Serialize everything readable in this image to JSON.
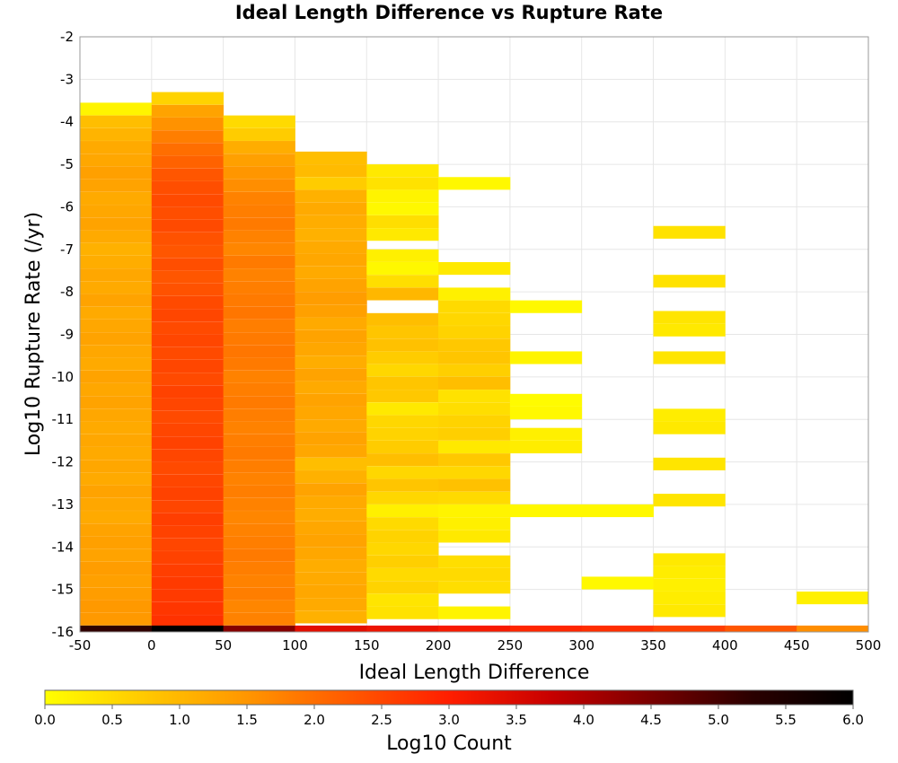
{
  "chart_data": {
    "type": "heatmap",
    "title": "Ideal Length Difference vs Rupture Rate",
    "xlabel": "Ideal Length Difference",
    "ylabel": "Log10 Rupture Rate (/yr)",
    "xlim": [
      -50,
      500
    ],
    "ylim": [
      -16,
      -2
    ],
    "x_ticks": [
      "-50",
      "0",
      "50",
      "100",
      "150",
      "200",
      "250",
      "300",
      "350",
      "400",
      "450",
      "500"
    ],
    "y_ticks": [
      "-2",
      "-3",
      "-4",
      "-5",
      "-6",
      "-7",
      "-8",
      "-9",
      "-10",
      "-11",
      "-12",
      "-13",
      "-14",
      "-15",
      "-16"
    ],
    "x_bin_width": 50,
    "y_bin_height": 0.29,
    "grid": true,
    "colorbar": {
      "label": "Log10 Count",
      "min": 0.0,
      "max": 6.0,
      "ticks": [
        "0.0",
        "0.5",
        "1.0",
        "1.5",
        "2.0",
        "2.5",
        "3.0",
        "3.5",
        "4.0",
        "4.5",
        "5.0",
        "5.5",
        "6.0"
      ],
      "colormap": [
        "#ffff00",
        "#ffc800",
        "#ff9600",
        "#ff5a00",
        "#ff1e00",
        "#c80000",
        "#7a0000",
        "#2a0000",
        "#000000"
      ]
    },
    "columns": [
      {
        "x_start": -50,
        "y_top": -3.55,
        "cells": [
          [
            -3.55,
            0.15
          ],
          [
            -3.85,
            0.9
          ],
          [
            -4.15,
            1.05
          ],
          [
            -4.45,
            1.2
          ],
          [
            -4.75,
            1.25
          ],
          [
            -5.05,
            1.35
          ],
          [
            -5.35,
            1.3
          ],
          [
            -5.65,
            1.2
          ],
          [
            -5.95,
            1.25
          ],
          [
            -6.25,
            1.3
          ],
          [
            -6.55,
            1.2
          ],
          [
            -6.85,
            1.1
          ],
          [
            -7.15,
            1.15
          ],
          [
            -7.45,
            1.25
          ],
          [
            -7.75,
            1.2
          ],
          [
            -8.05,
            1.3
          ],
          [
            -8.35,
            1.2
          ],
          [
            -8.65,
            1.25
          ],
          [
            -8.95,
            1.3
          ],
          [
            -9.25,
            1.25
          ],
          [
            -9.55,
            1.2
          ],
          [
            -9.85,
            1.3
          ],
          [
            -10.15,
            1.25
          ],
          [
            -10.45,
            1.3
          ],
          [
            -10.75,
            1.25
          ],
          [
            -11.05,
            1.2
          ],
          [
            -11.35,
            1.25
          ],
          [
            -11.65,
            1.2
          ],
          [
            -11.95,
            1.25
          ],
          [
            -12.25,
            1.2
          ],
          [
            -12.55,
            1.3
          ],
          [
            -12.85,
            1.25
          ],
          [
            -13.15,
            1.2
          ],
          [
            -13.45,
            1.3
          ],
          [
            -13.75,
            1.35
          ],
          [
            -14.05,
            1.3
          ],
          [
            -14.35,
            1.4
          ],
          [
            -14.65,
            1.35
          ],
          [
            -14.95,
            1.4
          ],
          [
            -15.25,
            1.45
          ],
          [
            -15.55,
            1.45
          ],
          [
            -15.85,
            5.2
          ]
        ]
      },
      {
        "x_start": 0,
        "y_top": -3.3,
        "cells": [
          [
            -3.3,
            0.6
          ],
          [
            -3.6,
            1.3
          ],
          [
            -3.9,
            1.55
          ],
          [
            -4.2,
            1.8
          ],
          [
            -4.5,
            2.0
          ],
          [
            -4.8,
            2.15
          ],
          [
            -5.1,
            2.3
          ],
          [
            -5.4,
            2.4
          ],
          [
            -5.7,
            2.45
          ],
          [
            -6.0,
            2.4
          ],
          [
            -6.3,
            2.45
          ],
          [
            -6.6,
            2.35
          ],
          [
            -6.9,
            2.3
          ],
          [
            -7.2,
            2.4
          ],
          [
            -7.5,
            2.3
          ],
          [
            -7.8,
            2.35
          ],
          [
            -8.1,
            2.45
          ],
          [
            -8.4,
            2.5
          ],
          [
            -8.7,
            2.45
          ],
          [
            -9.0,
            2.5
          ],
          [
            -9.3,
            2.45
          ],
          [
            -9.6,
            2.5
          ],
          [
            -9.9,
            2.45
          ],
          [
            -10.2,
            2.55
          ],
          [
            -10.5,
            2.5
          ],
          [
            -10.8,
            2.45
          ],
          [
            -11.1,
            2.5
          ],
          [
            -11.4,
            2.55
          ],
          [
            -11.7,
            2.5
          ],
          [
            -12.0,
            2.45
          ],
          [
            -12.3,
            2.5
          ],
          [
            -12.6,
            2.55
          ],
          [
            -12.9,
            2.5
          ],
          [
            -13.2,
            2.6
          ],
          [
            -13.5,
            2.55
          ],
          [
            -13.8,
            2.5
          ],
          [
            -14.1,
            2.55
          ],
          [
            -14.4,
            2.6
          ],
          [
            -14.7,
            2.65
          ],
          [
            -15.0,
            2.65
          ],
          [
            -15.3,
            2.7
          ],
          [
            -15.6,
            2.75
          ],
          [
            -15.85,
            6.0
          ]
        ]
      },
      {
        "x_start": 50,
        "y_top": -3.85,
        "cells": [
          [
            -3.85,
            0.5
          ],
          [
            -4.15,
            0.7
          ],
          [
            -4.45,
            1.15
          ],
          [
            -4.75,
            1.35
          ],
          [
            -5.05,
            1.5
          ],
          [
            -5.35,
            1.6
          ],
          [
            -5.65,
            1.75
          ],
          [
            -5.95,
            1.8
          ],
          [
            -6.25,
            1.85
          ],
          [
            -6.55,
            1.75
          ],
          [
            -6.85,
            1.7
          ],
          [
            -7.15,
            1.85
          ],
          [
            -7.45,
            1.75
          ],
          [
            -7.75,
            1.8
          ],
          [
            -8.05,
            1.85
          ],
          [
            -8.35,
            1.9
          ],
          [
            -8.65,
            1.8
          ],
          [
            -8.95,
            1.85
          ],
          [
            -9.25,
            1.9
          ],
          [
            -9.55,
            1.85
          ],
          [
            -9.85,
            1.75
          ],
          [
            -10.15,
            1.8
          ],
          [
            -10.45,
            1.85
          ],
          [
            -10.75,
            1.8
          ],
          [
            -11.05,
            1.75
          ],
          [
            -11.35,
            1.8
          ],
          [
            -11.65,
            1.85
          ],
          [
            -11.95,
            1.8
          ],
          [
            -12.25,
            1.75
          ],
          [
            -12.55,
            1.8
          ],
          [
            -12.85,
            1.75
          ],
          [
            -13.15,
            1.7
          ],
          [
            -13.45,
            1.75
          ],
          [
            -13.75,
            1.8
          ],
          [
            -14.05,
            1.85
          ],
          [
            -14.35,
            1.8
          ],
          [
            -14.65,
            1.75
          ],
          [
            -14.95,
            1.8
          ],
          [
            -15.25,
            1.7
          ],
          [
            -15.55,
            1.75
          ],
          [
            -15.85,
            4.4
          ]
        ]
      },
      {
        "x_start": 100,
        "y_top": -4.7,
        "cells": [
          [
            -4.7,
            0.9
          ],
          [
            -5.0,
            0.95
          ],
          [
            -5.3,
            0.7
          ],
          [
            -5.6,
            1.1
          ],
          [
            -5.9,
            1.2
          ],
          [
            -6.2,
            1.15
          ],
          [
            -6.5,
            1.1
          ],
          [
            -6.8,
            1.2
          ],
          [
            -7.1,
            1.25
          ],
          [
            -7.4,
            1.2
          ],
          [
            -7.7,
            1.3
          ],
          [
            -8.0,
            1.4
          ],
          [
            -8.3,
            1.35
          ],
          [
            -8.6,
            1.2
          ],
          [
            -8.9,
            1.3
          ],
          [
            -9.2,
            1.25
          ],
          [
            -9.5,
            1.15
          ],
          [
            -9.8,
            1.3
          ],
          [
            -10.1,
            1.2
          ],
          [
            -10.4,
            1.3
          ],
          [
            -10.7,
            1.25
          ],
          [
            -11.0,
            1.2
          ],
          [
            -11.3,
            1.3
          ],
          [
            -11.6,
            1.25
          ],
          [
            -11.9,
            0.9
          ],
          [
            -12.2,
            1.1
          ],
          [
            -12.5,
            1.3
          ],
          [
            -12.8,
            1.2
          ],
          [
            -13.1,
            1.15
          ],
          [
            -13.4,
            1.25
          ],
          [
            -13.7,
            1.3
          ],
          [
            -14.0,
            1.25
          ],
          [
            -14.3,
            1.15
          ],
          [
            -14.6,
            1.2
          ],
          [
            -14.9,
            1.25
          ],
          [
            -15.2,
            1.2
          ],
          [
            -15.5,
            1.1
          ],
          [
            -15.85,
            3.4
          ]
        ]
      },
      {
        "x_start": 150,
        "y_top": -5.0,
        "cells": [
          [
            -5.0,
            0.3
          ],
          [
            -5.3,
            0.4
          ],
          [
            -5.6,
            0.15
          ],
          [
            -5.9,
            0.1
          ],
          [
            -6.2,
            0.45
          ],
          [
            -6.5,
            0.3
          ],
          [
            -7.0,
            0.2
          ],
          [
            -7.3,
            0.1
          ],
          [
            -7.6,
            0.45
          ],
          [
            -7.9,
            1.0
          ],
          [
            -8.5,
            0.9
          ],
          [
            -8.8,
            0.8
          ],
          [
            -9.1,
            0.85
          ],
          [
            -9.4,
            0.7
          ],
          [
            -9.7,
            0.55
          ],
          [
            -10.0,
            0.8
          ],
          [
            -10.3,
            0.75
          ],
          [
            -10.6,
            0.3
          ],
          [
            -10.9,
            0.55
          ],
          [
            -11.2,
            0.6
          ],
          [
            -11.5,
            0.7
          ],
          [
            -11.8,
            0.9
          ],
          [
            -12.1,
            0.55
          ],
          [
            -12.4,
            0.8
          ],
          [
            -12.7,
            0.55
          ],
          [
            -13.0,
            0.2
          ],
          [
            -13.3,
            0.5
          ],
          [
            -13.6,
            0.6
          ],
          [
            -13.9,
            0.55
          ],
          [
            -14.2,
            0.65
          ],
          [
            -14.5,
            0.5
          ],
          [
            -14.8,
            0.6
          ],
          [
            -15.1,
            0.35
          ],
          [
            -15.4,
            0.4
          ],
          [
            -15.85,
            3.25
          ]
        ]
      },
      {
        "x_start": 200,
        "y_top": -5.3,
        "cells": [
          [
            -5.3,
            0.1
          ],
          [
            -7.3,
            0.3
          ],
          [
            -7.9,
            0.2
          ],
          [
            -8.2,
            0.5
          ],
          [
            -8.5,
            0.55
          ],
          [
            -8.8,
            0.6
          ],
          [
            -9.1,
            0.75
          ],
          [
            -9.4,
            0.8
          ],
          [
            -9.7,
            0.65
          ],
          [
            -10.0,
            0.9
          ],
          [
            -10.3,
            0.4
          ],
          [
            -10.6,
            0.45
          ],
          [
            -10.9,
            0.6
          ],
          [
            -11.2,
            0.65
          ],
          [
            -11.5,
            0.3
          ],
          [
            -11.8,
            0.75
          ],
          [
            -12.1,
            0.55
          ],
          [
            -12.4,
            0.85
          ],
          [
            -12.7,
            0.5
          ],
          [
            -13.0,
            0.15
          ],
          [
            -13.3,
            0.2
          ],
          [
            -13.6,
            0.3
          ],
          [
            -14.2,
            0.45
          ],
          [
            -14.5,
            0.5
          ],
          [
            -14.8,
            0.45
          ],
          [
            -15.4,
            0.15
          ],
          [
            -15.85,
            3.1
          ]
        ]
      },
      {
        "x_start": 250,
        "y_top": -8.2,
        "cells": [
          [
            -8.2,
            0.1
          ],
          [
            -9.4,
            0.15
          ],
          [
            -10.4,
            0.05
          ],
          [
            -10.7,
            0.1
          ],
          [
            -11.2,
            0.2
          ],
          [
            -11.5,
            0.25
          ],
          [
            -13.0,
            0.1
          ],
          [
            -15.85,
            2.9
          ]
        ]
      },
      {
        "x_start": 300,
        "y_top": -13.0,
        "cells": [
          [
            -13.0,
            0.1
          ],
          [
            -14.7,
            0.1
          ],
          [
            -15.85,
            2.8
          ]
        ]
      },
      {
        "x_start": 350,
        "y_top": -6.45,
        "cells": [
          [
            -6.45,
            0.4
          ],
          [
            -7.6,
            0.4
          ],
          [
            -8.45,
            0.35
          ],
          [
            -8.75,
            0.3
          ],
          [
            -9.4,
            0.35
          ],
          [
            -10.75,
            0.25
          ],
          [
            -11.05,
            0.3
          ],
          [
            -11.9,
            0.35
          ],
          [
            -12.75,
            0.35
          ],
          [
            -14.15,
            0.3
          ],
          [
            -14.45,
            0.25
          ],
          [
            -14.75,
            0.2
          ],
          [
            -15.05,
            0.25
          ],
          [
            -15.35,
            0.3
          ],
          [
            -15.85,
            2.6
          ]
        ]
      },
      {
        "x_start": 400,
        "y_top": -15.85,
        "cells": [
          [
            -15.85,
            2.3
          ]
        ]
      },
      {
        "x_start": 450,
        "y_top": -15.05,
        "cells": [
          [
            -15.05,
            0.2
          ],
          [
            -15.85,
            1.6
          ]
        ]
      }
    ]
  }
}
